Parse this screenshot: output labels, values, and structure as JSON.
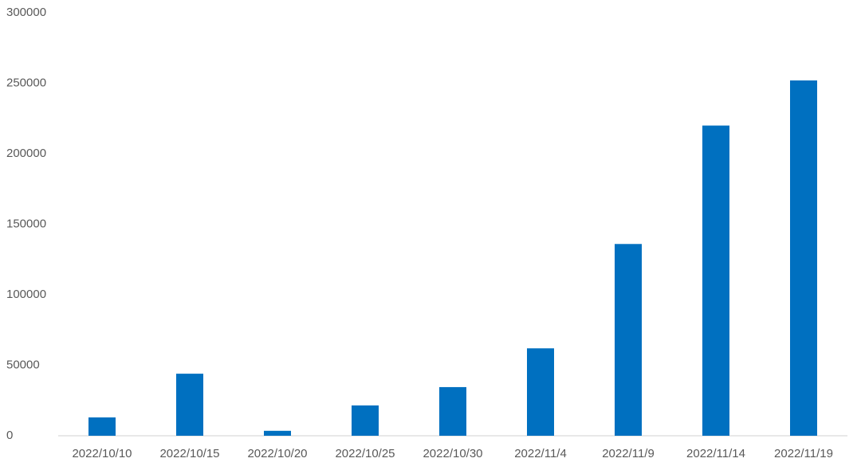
{
  "chart_data": {
    "type": "bar",
    "categories": [
      "2022/10/10",
      "2022/10/15",
      "2022/10/20",
      "2022/10/25",
      "2022/10/30",
      "2022/11/4",
      "2022/11/9",
      "2022/11/14",
      "2022/11/19"
    ],
    "values": [
      13000,
      44000,
      3500,
      21500,
      34500,
      62000,
      136000,
      220000,
      252000
    ],
    "color": "#0070c0",
    "ylim": [
      0,
      300000
    ],
    "yticks": [
      0,
      50000,
      100000,
      150000,
      200000,
      250000,
      300000
    ],
    "grid": false
  }
}
